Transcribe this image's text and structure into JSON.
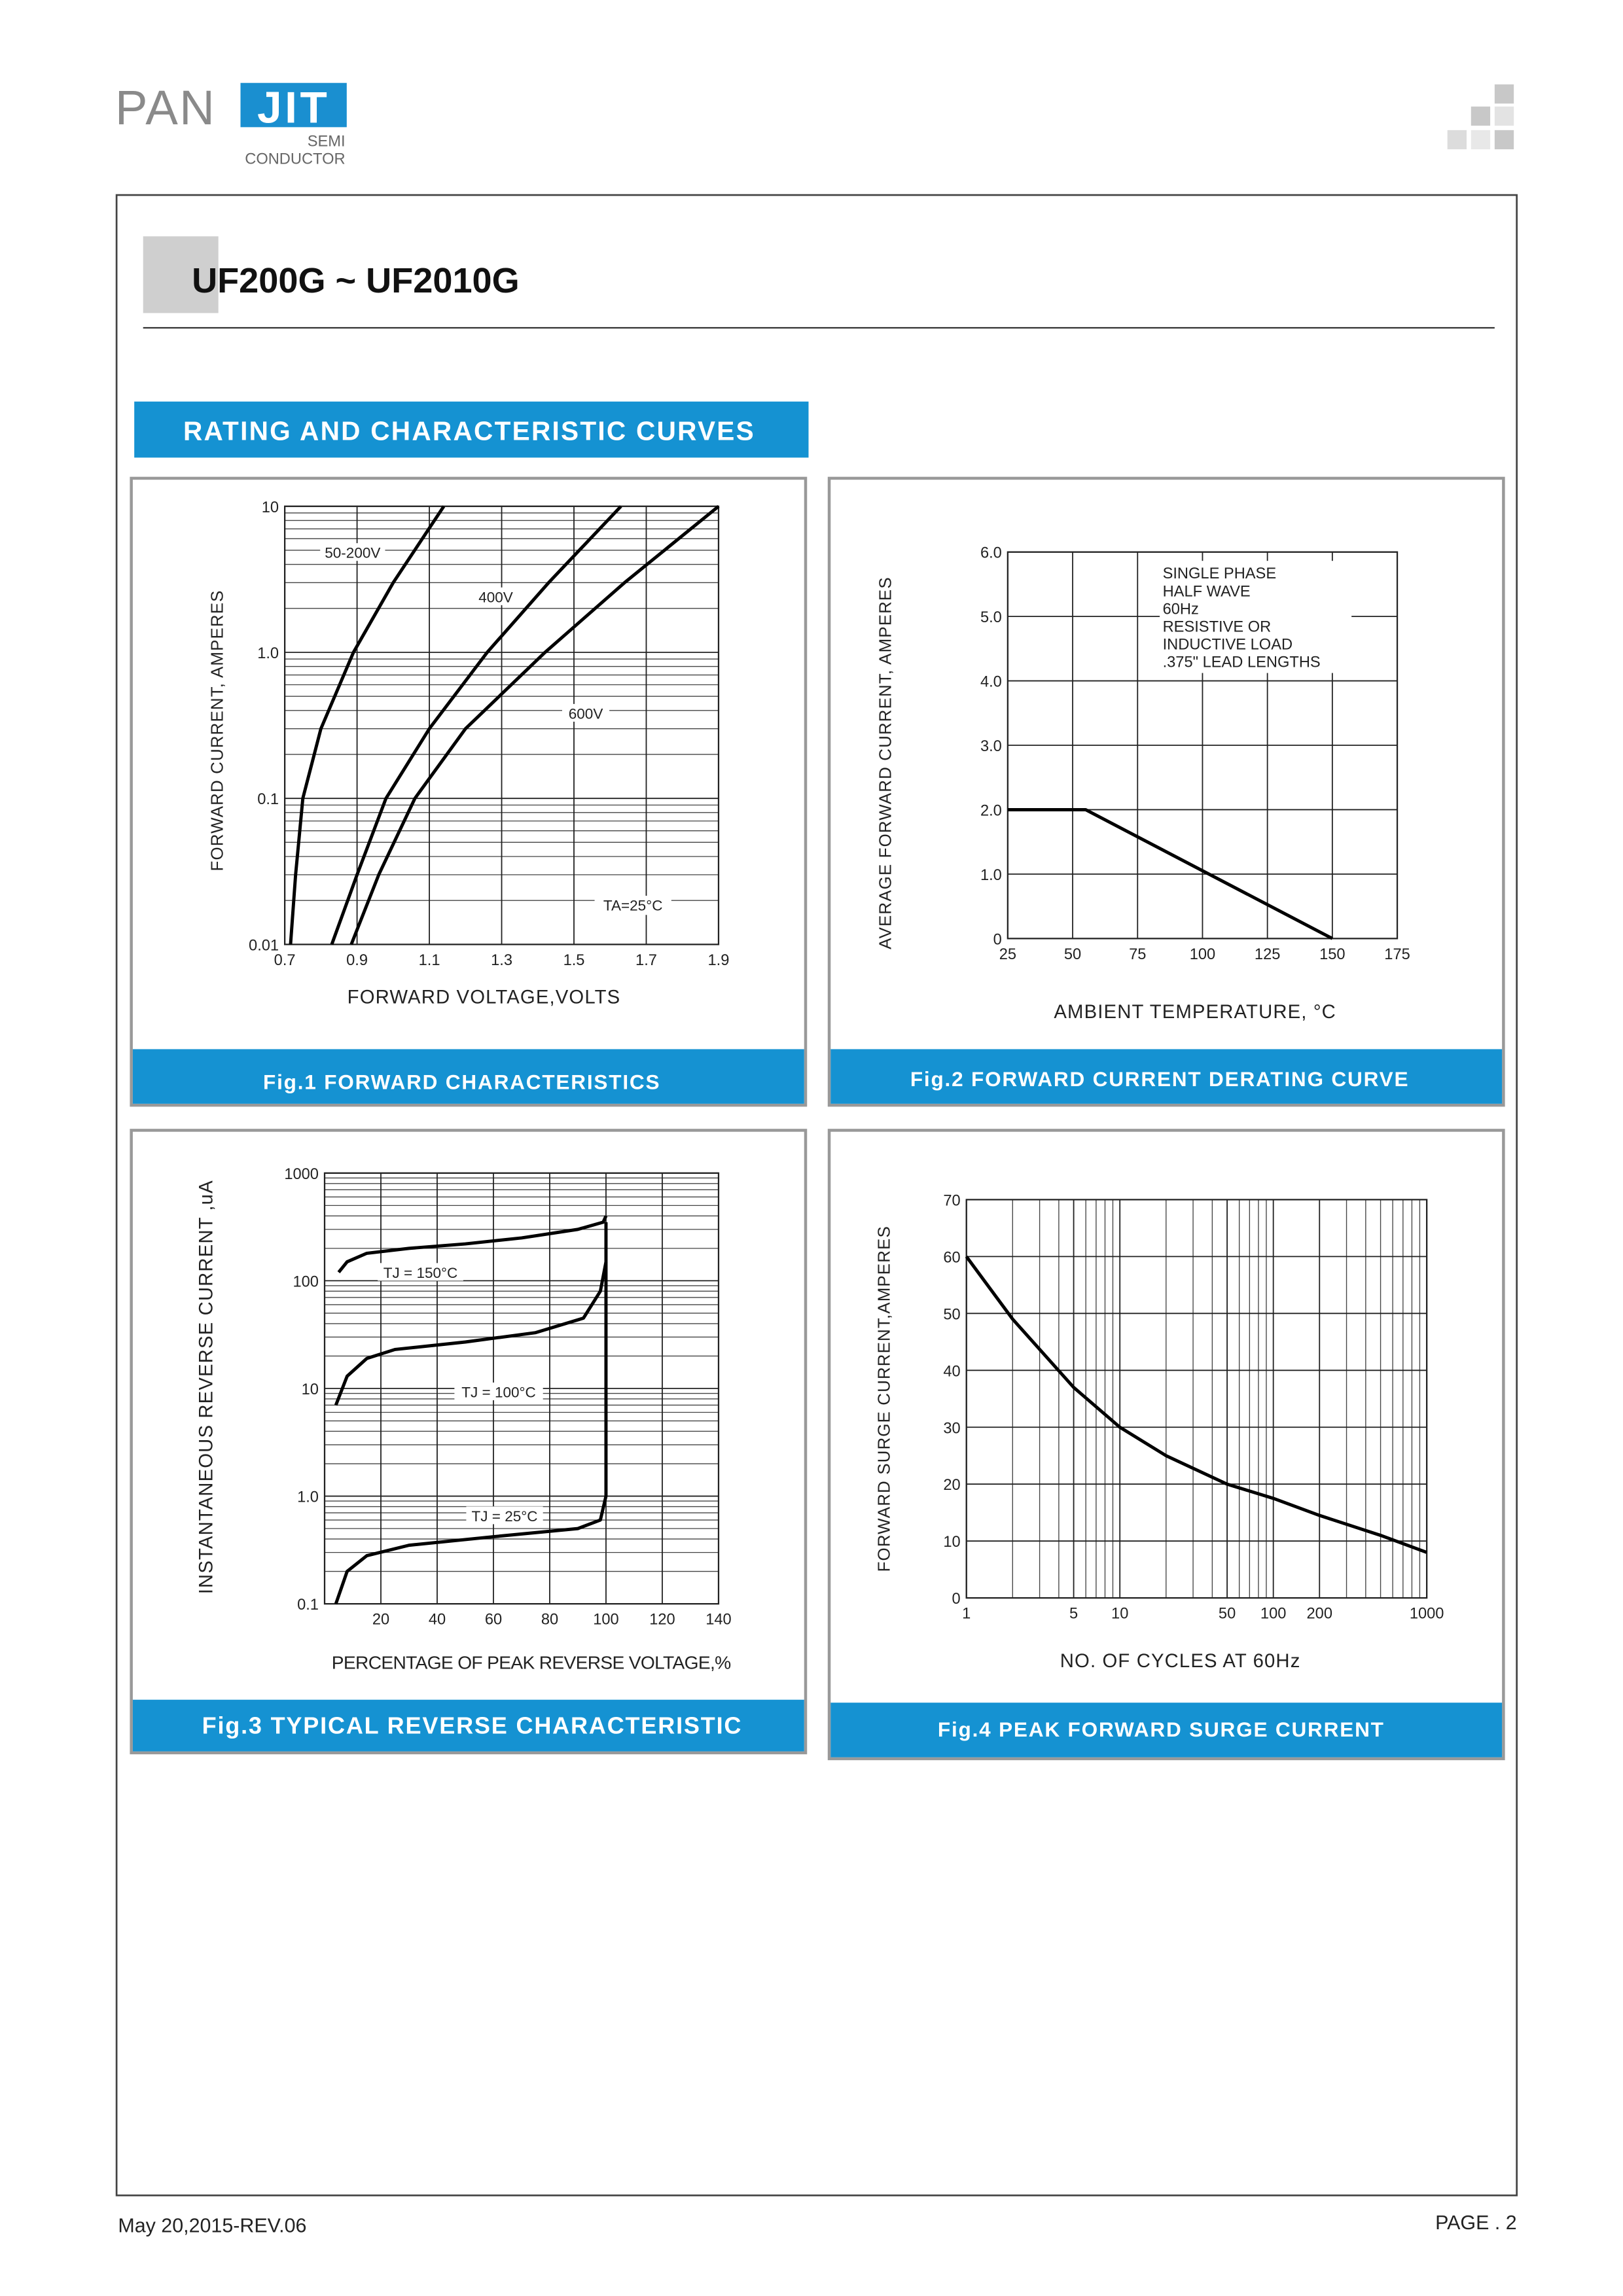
{
  "header": {
    "logo_left": "PAN",
    "logo_right": "JIT",
    "logo_sub1": "SEMI",
    "logo_sub2": "CONDUCTOR",
    "title": "UF200G ~ UF2010G",
    "section": "RATING AND CHARACTERISTIC CURVES"
  },
  "footer": {
    "date": "May 20,2015-REV.06",
    "page": "PAGE . 2"
  },
  "chart_data": [
    {
      "type": "line",
      "title": "Fig.1 FORWARD CHARACTERISTICS",
      "x_label": "FORWARD VOLTAGE,VOLTS",
      "y_label": "FORWARD CURRENT, AMPERES",
      "annotation": "TA=25°C",
      "xlim": [
        0.7,
        1.9
      ],
      "xticks": [
        0.7,
        0.9,
        1.1,
        1.3,
        1.5,
        1.7,
        1.9
      ],
      "ylim": [
        0.01,
        10
      ],
      "yticks": [
        0.01,
        0.1,
        {
          "value": 1,
          "label": "1.0"
        },
        10
      ],
      "yscale": "log",
      "grid": true,
      "series": [
        {
          "name": "50-200V",
          "color": "#000000",
          "x": [
            0.716,
            0.73,
            0.75,
            0.8,
            0.89,
            1.0,
            1.14
          ],
          "values": [
            0.01,
            0.03,
            0.1,
            0.3,
            1,
            3,
            10
          ]
        },
        {
          "name": "400V",
          "color": "#000000",
          "x": [
            0.83,
            0.9,
            0.98,
            1.1,
            1.26,
            1.43,
            1.63
          ],
          "values": [
            0.01,
            0.03,
            0.1,
            0.3,
            1,
            3,
            10
          ]
        },
        {
          "name": "600V",
          "color": "#000000",
          "x": [
            0.884,
            0.96,
            1.06,
            1.2,
            1.42,
            1.64,
            1.9
          ],
          "values": [
            0.01,
            0.03,
            0.1,
            0.3,
            1,
            3,
            10
          ]
        }
      ]
    },
    {
      "type": "line",
      "title": "Fig.2 FORWARD CURRENT DERATING CURVE",
      "x_label": "AMBIENT TEMPERATURE, °C",
      "y_label": "AVERAGE FORWARD CURRENT, AMPERES",
      "notes": [
        "SINGLE PHASE",
        "HALF WAVE",
        "60Hz",
        "RESISTIVE OR",
        "INDUCTIVE LOAD",
        ".375\" LEAD LENGTHS"
      ],
      "xlim": [
        25,
        175
      ],
      "xticks": [
        25,
        50,
        75,
        100,
        125,
        150,
        175
      ],
      "ylim": [
        0,
        6
      ],
      "yticks": [
        0,
        {
          "value": 1,
          "label": "1.0"
        },
        {
          "value": 2,
          "label": "2.0"
        },
        {
          "value": 3,
          "label": "3.0"
        },
        {
          "value": 4,
          "label": "4.0"
        },
        {
          "value": 5,
          "label": "5.0"
        },
        {
          "value": 6,
          "label": "6.0"
        }
      ],
      "grid": true,
      "series": [
        {
          "name": "Derating",
          "color": "#000000",
          "x": [
            25,
            55,
            150
          ],
          "values": [
            2,
            2,
            0
          ]
        }
      ]
    },
    {
      "type": "line",
      "title": "Fig.3  TYPICAL REVERSE CHARACTERISTIC",
      "x_label": "PERCENTAGE OF PEAK REVERSE VOLTAGE,%",
      "y_label": "INSTANTANEOUS REVERSE CURRENT ,uA",
      "xlim": [
        0,
        140
      ],
      "xticks": [
        20,
        40,
        60,
        80,
        100,
        120,
        140
      ],
      "ylim": [
        0.1,
        1000
      ],
      "yticks": [
        0.1,
        {
          "value": 1,
          "label": "1.0"
        },
        10,
        100,
        1000
      ],
      "yscale": "log",
      "grid": true,
      "series": [
        {
          "name": "TJ = 150°C",
          "color": "#000000",
          "x": [
            5,
            8,
            15,
            30,
            50,
            70,
            90,
            99,
            100
          ],
          "values": [
            120,
            150,
            180,
            200,
            220,
            250,
            300,
            350,
            400
          ]
        },
        {
          "name": "TJ = 100°C",
          "color": "#000000",
          "x": [
            4,
            8,
            15,
            25,
            50,
            75,
            92,
            98,
            100
          ],
          "values": [
            7,
            13,
            19,
            23,
            27,
            33,
            45,
            80,
            150
          ]
        },
        {
          "name": "TJ = 25°C",
          "color": "#000000",
          "x": [
            4,
            8,
            15,
            30,
            60,
            90,
            98,
            100,
            100
          ],
          "values": [
            0.1,
            0.2,
            0.28,
            0.35,
            0.42,
            0.5,
            0.6,
            1,
            350
          ]
        }
      ]
    },
    {
      "type": "line",
      "title": "Fig.4 PEAK FORWARD SURGE CURRENT",
      "x_label": "NO. OF CYCLES AT 60Hz",
      "y_label": "FORWARD SURGE CURRENT,AMPERES",
      "xlim": [
        1,
        1000
      ],
      "xticks": [
        1,
        5,
        10,
        50,
        100,
        200,
        1000
      ],
      "xscale": "log",
      "ylim": [
        0,
        70
      ],
      "yticks": [
        0,
        10,
        20,
        30,
        40,
        50,
        60,
        70
      ],
      "grid": true,
      "series": [
        {
          "name": "Surge",
          "color": "#000000",
          "x": [
            1,
            2,
            5,
            10,
            20,
            50,
            100,
            200,
            500,
            1000
          ],
          "values": [
            60,
            49,
            37,
            30,
            25,
            20,
            17.5,
            14.5,
            11,
            8
          ]
        }
      ]
    }
  ]
}
